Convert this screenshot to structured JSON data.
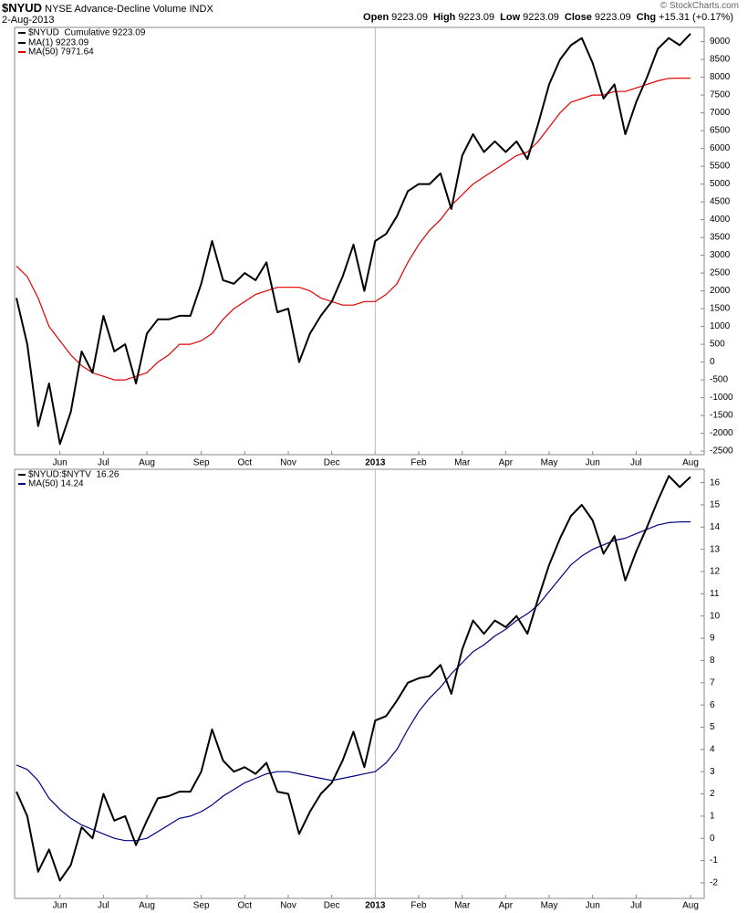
{
  "header": {
    "symbol": "$NYUD",
    "name": "NYSE Advance-Decline Volume INDX",
    "date": "2-Aug-2013",
    "quote": [
      {
        "label": "Open",
        "value": 9223.09
      },
      {
        "label": "High",
        "value": 9223.09
      },
      {
        "label": "Low",
        "value": 9223.09
      },
      {
        "label": "Close",
        "value": 9223.09
      },
      {
        "label": "Chg",
        "value": "+15.31 (+0.17%)"
      }
    ],
    "source": "© StockCharts.com"
  },
  "chart_data": [
    {
      "type": "line",
      "legend_title": "$NYUD  Cumulative 9223.09",
      "categories": [
        null,
        null,
        null,
        null,
        "Jun",
        null,
        null,
        null,
        "Jul",
        null,
        null,
        null,
        "Aug",
        null,
        null,
        null,
        null,
        "Sep",
        null,
        null,
        null,
        "Oct",
        null,
        null,
        null,
        "Nov",
        null,
        null,
        null,
        "Dec",
        null,
        null,
        null,
        "2013",
        null,
        null,
        null,
        "Feb",
        null,
        null,
        null,
        "Mar",
        null,
        null,
        null,
        "Apr",
        null,
        null,
        null,
        "May",
        null,
        null,
        null,
        "Jun",
        null,
        null,
        null,
        "Jul",
        null,
        null,
        null,
        null,
        "Aug"
      ],
      "series": [
        {
          "name": "MA(1) 9223.09",
          "color": "#000000",
          "width": 2,
          "values": [
            1800,
            500,
            -1800,
            -600,
            -2300,
            -1400,
            300,
            -300,
            1300,
            300,
            500,
            -600,
            800,
            1200,
            1200,
            1300,
            1300,
            2200,
            3400,
            2300,
            2200,
            2500,
            2300,
            2800,
            1400,
            1500,
            0,
            800,
            1300,
            1700,
            2400,
            3300,
            2000,
            3400,
            3600,
            4100,
            4800,
            5000,
            5000,
            5300,
            4300,
            5800,
            6400,
            5900,
            6200,
            5900,
            6200,
            5700,
            6700,
            7800,
            8500,
            8900,
            9100,
            8400,
            7400,
            7800,
            6400,
            7300,
            8000,
            8800,
            9100,
            8900,
            9223.09
          ]
        },
        {
          "name": "MA(50) 7971.64",
          "color": "#e00000",
          "width": 1.2,
          "values": [
            2700,
            2400,
            1800,
            1000,
            600,
            200,
            -100,
            -300,
            -400,
            -500,
            -500,
            -400,
            -300,
            0,
            200,
            500,
            500,
            600,
            800,
            1200,
            1500,
            1700,
            1900,
            2000,
            2100,
            2100,
            2100,
            2000,
            1800,
            1700,
            1600,
            1600,
            1700,
            1700,
            1900,
            2200,
            2800,
            3300,
            3700,
            4000,
            4400,
            4700,
            5000,
            5200,
            5400,
            5600,
            5800,
            5900,
            6200,
            6600,
            7000,
            7300,
            7400,
            7500,
            7500,
            7600,
            7600,
            7700,
            7800,
            7900,
            7970,
            7975,
            7971.64
          ]
        }
      ],
      "ylim": [
        -2600,
        9400
      ],
      "yticks": [
        -2500,
        -2000,
        -1500,
        -1000,
        -500,
        0,
        500,
        1000,
        1500,
        2000,
        2500,
        3000,
        3500,
        4000,
        4500,
        5000,
        5500,
        6000,
        6500,
        7000,
        7500,
        8000,
        8500,
        9000
      ]
    },
    {
      "type": "line",
      "categories": [
        null,
        null,
        null,
        null,
        "Jun",
        null,
        null,
        null,
        "Jul",
        null,
        null,
        null,
        "Aug",
        null,
        null,
        null,
        null,
        "Sep",
        null,
        null,
        null,
        "Oct",
        null,
        null,
        null,
        "Nov",
        null,
        null,
        null,
        "Dec",
        null,
        null,
        null,
        "2013",
        null,
        null,
        null,
        "Feb",
        null,
        null,
        null,
        "Mar",
        null,
        null,
        null,
        "Apr",
        null,
        null,
        null,
        "May",
        null,
        null,
        null,
        "Jun",
        null,
        null,
        null,
        "Jul",
        null,
        null,
        null,
        null,
        "Aug"
      ],
      "series": [
        {
          "name": "$NYUD:$NYTV  16.26",
          "color": "#000000",
          "width": 2,
          "values": [
            2.1,
            1.0,
            -1.5,
            -0.5,
            -1.9,
            -1.2,
            0.5,
            0.0,
            2.0,
            0.8,
            1.0,
            -0.3,
            0.8,
            1.8,
            1.9,
            2.1,
            2.1,
            3.0,
            4.9,
            3.5,
            3.0,
            3.2,
            2.9,
            3.4,
            2.1,
            2.0,
            0.2,
            1.2,
            2.0,
            2.5,
            3.5,
            4.8,
            3.2,
            5.3,
            5.5,
            6.2,
            7.0,
            7.2,
            7.3,
            7.8,
            6.5,
            8.5,
            9.8,
            9.2,
            9.8,
            9.5,
            10.0,
            9.2,
            10.8,
            12.3,
            13.5,
            14.5,
            15.0,
            14.3,
            12.8,
            13.6,
            11.6,
            12.9,
            14.0,
            15.2,
            16.3,
            15.8,
            16.26
          ]
        },
        {
          "name": "MA(50) 14.24",
          "color": "#00007f",
          "width": 1.2,
          "values": [
            3.3,
            3.1,
            2.6,
            1.8,
            1.3,
            0.9,
            0.6,
            0.4,
            0.2,
            0.0,
            -0.1,
            -0.1,
            0.0,
            0.3,
            0.6,
            0.9,
            1.0,
            1.2,
            1.5,
            1.9,
            2.2,
            2.5,
            2.7,
            2.9,
            3.0,
            3.0,
            2.9,
            2.8,
            2.7,
            2.6,
            2.7,
            2.8,
            2.9,
            3.0,
            3.4,
            4.0,
            4.9,
            5.7,
            6.3,
            6.8,
            7.4,
            7.9,
            8.4,
            8.7,
            9.1,
            9.4,
            9.8,
            10.1,
            10.5,
            11.1,
            11.7,
            12.3,
            12.7,
            13.0,
            13.2,
            13.4,
            13.5,
            13.7,
            13.9,
            14.1,
            14.2,
            14.23,
            14.24
          ]
        }
      ],
      "ylim": [
        -2.7,
        16.6
      ],
      "yticks": [
        -2,
        -1,
        0,
        1,
        2,
        3,
        4,
        5,
        6,
        7,
        8,
        9,
        10,
        11,
        12,
        13,
        14,
        15,
        16
      ]
    }
  ]
}
